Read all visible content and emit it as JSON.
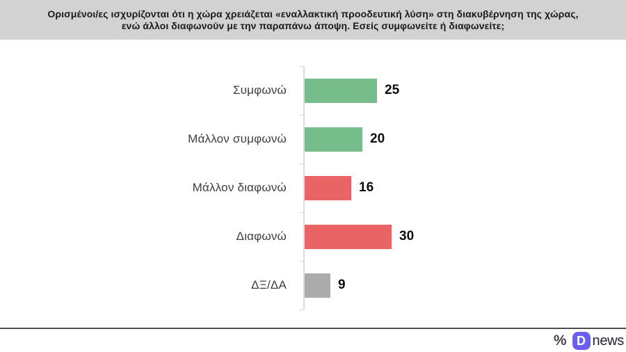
{
  "header": {
    "title_line1": "Ορισμένοι/ες ισχυρίζονται ότι η χώρα χρειάζεται «εναλλακτική προοδευτική λύση» στη διακυβέρνηση της χώρας,",
    "title_line2": "ενώ άλλοι διαφωνούν με την παραπάνω άποψη. Εσείς συμφωνείτε ή διαφωνείτε;"
  },
  "chart_data": {
    "type": "bar",
    "orientation": "horizontal",
    "categories": [
      "Συμφωνώ",
      "Μάλλον συμφωνώ",
      "Μάλλον διαφωνώ",
      "Διαφωνώ",
      "ΔΞ/ΔΑ"
    ],
    "values": [
      25,
      20,
      16,
      30,
      9
    ],
    "bar_colors": [
      "#77bd8b",
      "#77bd8b",
      "#e96565",
      "#e96565",
      "#ababab"
    ],
    "xlim": [
      0,
      100
    ],
    "value_labels_shown": true,
    "grid": false,
    "legend": "none",
    "title": "",
    "xlabel": "",
    "ylabel": ""
  },
  "footer": {
    "logo_percent": "%",
    "logo_d": "D",
    "logo_text": "news"
  },
  "colors": {
    "agree_green": "#77bd8b",
    "disagree_red": "#e96565",
    "neutral_gray": "#ababab",
    "header_bg": "#d2d2d2",
    "logo_badge": "#6b5ff0",
    "axis_line": "#dcdcdc",
    "footer_line": "#4f4f4f"
  }
}
